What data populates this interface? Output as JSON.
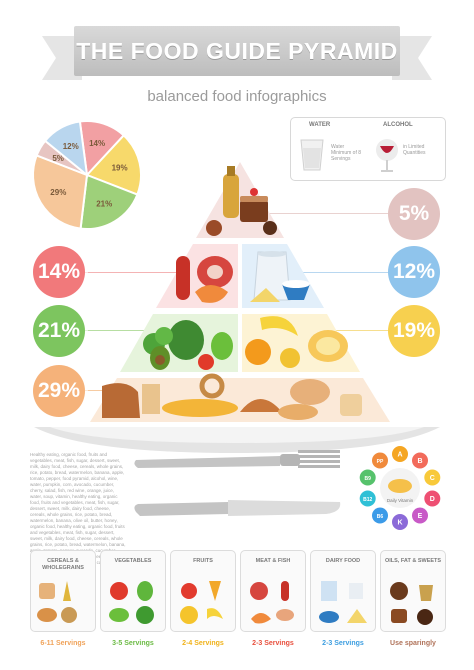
{
  "header": {
    "title": "THE FOOD GUIDE PYRAMID",
    "subtitle": "balanced food infographics"
  },
  "drinks": {
    "water_label": "WATER",
    "water_text": "Water Minimum of 8 Servings",
    "alcohol_label": "ALCOHOL",
    "alcohol_text": "in Limited Quantities"
  },
  "pie": {
    "slices": [
      {
        "label": "14%",
        "value": 14,
        "color": "#f2a0a3"
      },
      {
        "label": "19%",
        "value": 19,
        "color": "#f7d96b"
      },
      {
        "label": "21%",
        "value": 21,
        "color": "#9ed07a"
      },
      {
        "label": "29%",
        "value": 29,
        "color": "#f6c79a"
      },
      {
        "label": "5%",
        "value": 5,
        "color": "#e7c5c2"
      },
      {
        "label": "12%",
        "value": 12,
        "color": "#b9d6ee"
      }
    ]
  },
  "levels": {
    "top": {
      "label": "5%",
      "color": "#e2c3c1"
    },
    "meat": {
      "label": "14%",
      "color": "#f1797b"
    },
    "dairy": {
      "label": "12%",
      "color": "#8fc4ec"
    },
    "veg": {
      "label": "21%",
      "color": "#7dc55f"
    },
    "fruit": {
      "label": "19%",
      "color": "#f7d04f"
    },
    "grain": {
      "label": "29%",
      "color": "#f5b27a"
    }
  },
  "plate_text": "Healthy eating, organic food, fruits and vegetables, meat, fish, sugar, dessert, sweet, milk, dairy food, cheese, cereals, whole grains, rice, potato, bread, watermelon, banana, apple, tomato, pepper, food pyramid, alcohol, wine, water, pumpkin, corn, avocado, cucumber, cherry, salad, fish, red wine, orange, juice, water, soup, vitamin, healthy eating, organic food, fruits and vegetables, meat, fish, sugar, dessert, sweet, milk, dairy food, cheese, cereals, whole grains, rice, potato, bread, watermelon, banana, olive oil, butter, honey, organic food, healthy eating, organic food, fruits and vegetables, meat, fish, sugar, dessert, sweet, milk, dairy food, cheese, cereals, whole grains, rice, potato, bread, watermelon, banana, apple, tomato, pepper, avocado, cucumber, cherry, salad, fish, wine, soup, cheese, strawberry, cherry, melon, bread, cake.",
  "vitamins": [
    "A",
    "B",
    "C",
    "D",
    "E",
    "K",
    "B6",
    "B12",
    "B9",
    "PP"
  ],
  "vitamin_center": "Daily Vitamin",
  "groups": [
    {
      "title": "CEREALS & WHOLEGRAINS",
      "servings": "6-11 Servings",
      "color": "#f0a35a"
    },
    {
      "title": "VEGETABLES",
      "servings": "3-5 Servings",
      "color": "#6cbb45"
    },
    {
      "title": "FRUITS",
      "servings": "2-4 Servings",
      "color": "#f0b21a"
    },
    {
      "title": "MEAT & FISH",
      "servings": "2-3 Servings",
      "color": "#e8503e"
    },
    {
      "title": "DAIRY FOOD",
      "servings": "2-3 Servings",
      "color": "#3d9ee0"
    },
    {
      "title": "OILS, FAT & SWEETS",
      "servings": "Use sparingly",
      "color": "#b0735a"
    }
  ]
}
